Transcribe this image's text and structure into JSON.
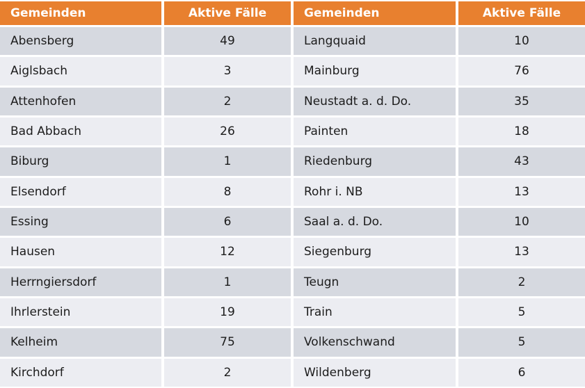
{
  "table": {
    "headers": [
      "Gemeinden",
      "Aktive Fälle",
      "Gemeinden",
      "Aktive Fälle"
    ],
    "left_rows": [
      {
        "name": "Abensberg",
        "cases": "49"
      },
      {
        "name": "Aiglsbach",
        "cases": "3"
      },
      {
        "name": "Attenhofen",
        "cases": "2"
      },
      {
        "name": "Bad Abbach",
        "cases": "26"
      },
      {
        "name": "Biburg",
        "cases": "1"
      },
      {
        "name": "Elsendorf",
        "cases": "8"
      },
      {
        "name": "Essing",
        "cases": "6"
      },
      {
        "name": "Hausen",
        "cases": "12"
      },
      {
        "name": "Herrngiersdorf",
        "cases": "1"
      },
      {
        "name": "Ihrlerstein",
        "cases": "19"
      },
      {
        "name": "Kelheim",
        "cases": "75"
      },
      {
        "name": "Kirchdorf",
        "cases": "2"
      }
    ],
    "right_rows": [
      {
        "name": "Langquaid",
        "cases": "10"
      },
      {
        "name": "Mainburg",
        "cases": "76"
      },
      {
        "name": "Neustadt a. d. Do.",
        "cases": "35"
      },
      {
        "name": "Painten",
        "cases": "18"
      },
      {
        "name": "Riedenburg",
        "cases": "43"
      },
      {
        "name": "Rohr i. NB",
        "cases": "13"
      },
      {
        "name": "Saal a. d. Do.",
        "cases": "10"
      },
      {
        "name": "Siegenburg",
        "cases": "13"
      },
      {
        "name": "Teugn",
        "cases": "2"
      },
      {
        "name": "Train",
        "cases": "5"
      },
      {
        "name": "Volkenschwand",
        "cases": "5"
      },
      {
        "name": "Wildenberg",
        "cases": "6"
      }
    ],
    "colors": {
      "header_background": "#E8802F",
      "header_text": "#FFFFFF",
      "band_dark": "#D6D9E0",
      "band_light": "#ECEDF2",
      "body_text": "#1C1C1C",
      "gutter": "#FFFFFF"
    }
  },
  "chart_data": {
    "type": "table",
    "columns": [
      "Gemeinden",
      "Aktive Fälle",
      "Gemeinden",
      "Aktive Fälle"
    ],
    "rows": [
      [
        "Abensberg",
        49,
        "Langquaid",
        10
      ],
      [
        "Aiglsbach",
        3,
        "Mainburg",
        76
      ],
      [
        "Attenhofen",
        2,
        "Neustadt a. d. Do.",
        35
      ],
      [
        "Bad Abbach",
        26,
        "Painten",
        18
      ],
      [
        "Biburg",
        1,
        "Riedenburg",
        43
      ],
      [
        "Elsendorf",
        8,
        "Rohr i. NB",
        13
      ],
      [
        "Essing",
        6,
        "Saal a. d. Do.",
        10
      ],
      [
        "Hausen",
        12,
        "Siegenburg",
        13
      ],
      [
        "Herrngiersdorf",
        1,
        "Teugn",
        2
      ],
      [
        "Ihrlerstein",
        19,
        "Train",
        5
      ],
      [
        "Kelheim",
        75,
        "Volkenschwand",
        5
      ],
      [
        "Kirchdorf",
        2,
        "Wildenberg",
        6
      ]
    ],
    "layout": {
      "banded_rows": true,
      "header_style": "orange-bold-white-text"
    }
  }
}
